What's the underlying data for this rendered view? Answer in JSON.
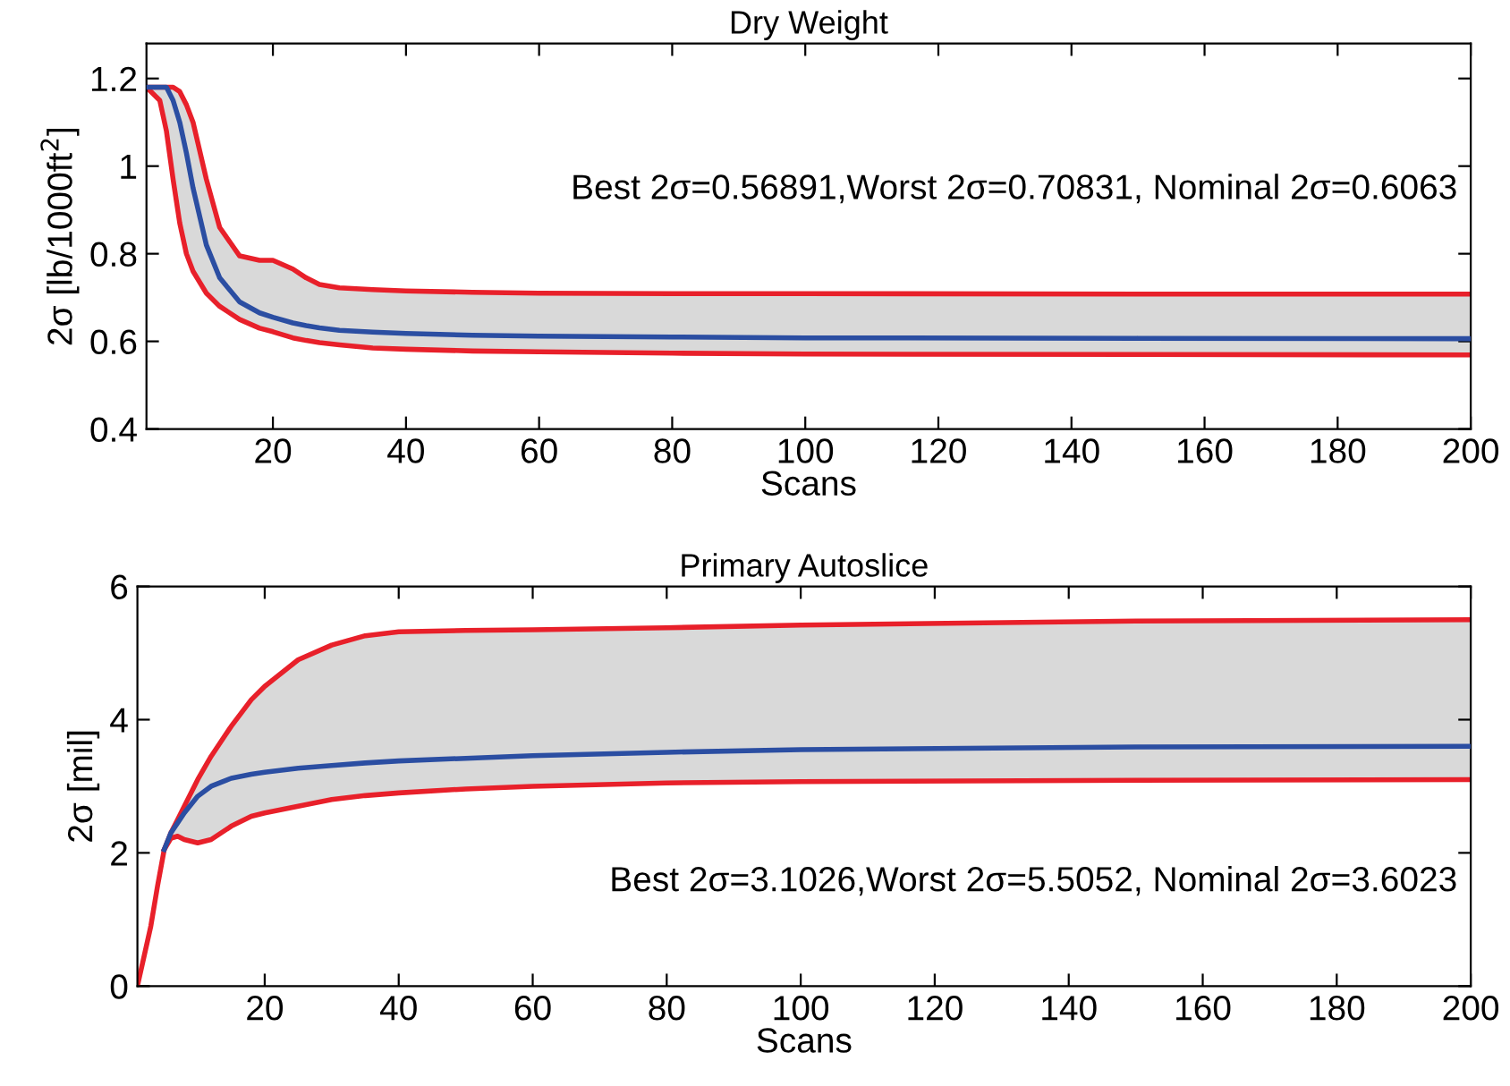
{
  "chart_data": [
    {
      "type": "line",
      "title": "Dry Weight",
      "xlabel": "Scans",
      "ylabel": "2σ [lb/1000ft$^{2}$]",
      "x": [
        1,
        3,
        4,
        5,
        6,
        7,
        8,
        10,
        12,
        15,
        18,
        20,
        23,
        25,
        27,
        30,
        35,
        40,
        50,
        60,
        80,
        100,
        150,
        200
      ],
      "series": [
        {
          "color": "#e8202a",
          "values": [
            1.18,
            1.15,
            1.08,
            0.97,
            0.87,
            0.8,
            0.76,
            0.71,
            0.68,
            0.65,
            0.63,
            0.622,
            0.608,
            0.602,
            0.597,
            0.592,
            0.585,
            0.582,
            0.578,
            0.576,
            0.573,
            0.571,
            0.57,
            0.569
          ]
        },
        {
          "color": "#e8202a",
          "values": [
            1.18,
            1.18,
            1.18,
            1.18,
            1.17,
            1.14,
            1.1,
            0.97,
            0.86,
            0.795,
            0.785,
            0.785,
            0.765,
            0.745,
            0.73,
            0.722,
            0.718,
            0.715,
            0.712,
            0.71,
            0.709,
            0.709,
            0.708,
            0.708
          ]
        },
        {
          "color": "#2b4ea2",
          "values": [
            1.18,
            1.18,
            1.18,
            1.15,
            1.1,
            1.03,
            0.95,
            0.82,
            0.745,
            0.69,
            0.665,
            0.655,
            0.642,
            0.636,
            0.631,
            0.625,
            0.621,
            0.618,
            0.614,
            0.612,
            0.61,
            0.608,
            0.607,
            0.606
          ],
          "lower": [
            1.18,
            1.15,
            1.08,
            0.97,
            0.87,
            0.8,
            0.76,
            0.71,
            0.68,
            0.65,
            0.63,
            0.622,
            0.608,
            0.602,
            0.597,
            0.592,
            0.585,
            0.582,
            0.578,
            0.576,
            0.573,
            0.571,
            0.57,
            0.569
          ],
          "upper": [
            1.18,
            1.18,
            1.18,
            1.18,
            1.17,
            1.14,
            1.1,
            0.97,
            0.86,
            0.795,
            0.785,
            0.785,
            0.765,
            0.745,
            0.73,
            0.722,
            0.718,
            0.715,
            0.712,
            0.71,
            0.709,
            0.709,
            0.708,
            0.708
          ]
        }
      ],
      "annotations": [
        "Best 2σ=0.56891,Worst 2σ=0.70831, Nominal 2σ=0.6063"
      ],
      "xlim": [
        1,
        200
      ],
      "xticks": [
        20,
        40,
        60,
        80,
        100,
        120,
        140,
        160,
        180,
        200
      ],
      "ylim": [
        0.4,
        1.28
      ],
      "yticks": [
        0.4,
        0.6,
        0.8,
        1,
        1.2
      ],
      "grid": false,
      "legend": false,
      "marker": "none",
      "line_style": "solid"
    },
    {
      "type": "line",
      "title": "Primary Autoslice",
      "xlabel": "Scans",
      "ylabel": "2σ [mil]",
      "x": [
        1,
        2,
        3,
        4,
        5,
        6,
        7,
        8,
        10,
        12,
        15,
        18,
        20,
        25,
        30,
        35,
        40,
        50,
        60,
        80,
        100,
        150,
        200
      ],
      "series": [
        {
          "color": "#e8202a",
          "values": [
            null,
            null,
            null,
            null,
            2.05,
            2.22,
            2.25,
            2.2,
            2.15,
            2.2,
            2.4,
            2.55,
            2.6,
            2.7,
            2.8,
            2.86,
            2.9,
            2.96,
            3.0,
            3.05,
            3.07,
            3.09,
            3.1
          ]
        },
        {
          "color": "#e8202a",
          "values": [
            0,
            0.45,
            0.9,
            1.5,
            2.05,
            2.3,
            2.5,
            2.7,
            3.1,
            3.45,
            3.9,
            4.3,
            4.5,
            4.9,
            5.12,
            5.26,
            5.32,
            5.34,
            5.35,
            5.38,
            5.42,
            5.48,
            5.5
          ]
        },
        {
          "color": "#2b4ea2",
          "values": [
            null,
            null,
            null,
            null,
            2.05,
            2.3,
            2.45,
            2.6,
            2.85,
            3.0,
            3.12,
            3.18,
            3.21,
            3.27,
            3.31,
            3.35,
            3.38,
            3.42,
            3.46,
            3.51,
            3.55,
            3.59,
            3.6
          ],
          "lower": [
            0,
            0.45,
            0.9,
            1.5,
            2.05,
            2.22,
            2.25,
            2.2,
            2.15,
            2.2,
            2.4,
            2.55,
            2.6,
            2.7,
            2.8,
            2.86,
            2.9,
            2.96,
            3.0,
            3.05,
            3.07,
            3.09,
            3.1
          ],
          "upper": [
            0,
            0.45,
            0.9,
            1.5,
            2.05,
            2.3,
            2.5,
            2.7,
            3.1,
            3.45,
            3.9,
            4.3,
            4.5,
            4.9,
            5.12,
            5.26,
            5.32,
            5.34,
            5.35,
            5.38,
            5.42,
            5.48,
            5.5
          ]
        }
      ],
      "annotations": [
        "Best 2σ=3.1026,Worst 2σ=5.5052, Nominal 2σ=3.6023"
      ],
      "xlim": [
        1,
        200
      ],
      "xticks": [
        20,
        40,
        60,
        80,
        100,
        120,
        140,
        160,
        180,
        200
      ],
      "ylim": [
        0,
        6
      ],
      "yticks": [
        0,
        2,
        4,
        6
      ],
      "grid": false,
      "legend": false,
      "marker": "none",
      "line_style": "solid"
    }
  ]
}
